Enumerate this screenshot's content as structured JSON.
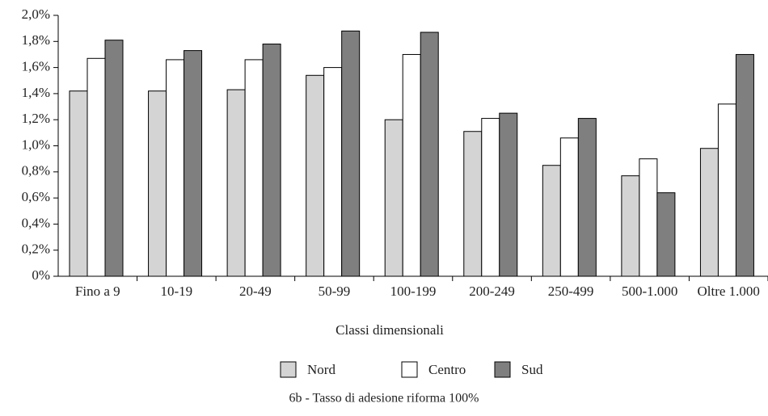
{
  "chart_data": {
    "type": "bar",
    "x_label": "Classi dimensionali",
    "caption": "6b - Tasso di adesione riforma 100%",
    "categories": [
      "Fino a 9",
      "10-19",
      "20-49",
      "50-99",
      "100-199",
      "200-249",
      "250-499",
      "500-1.000",
      "Oltre 1.000"
    ],
    "series": [
      {
        "name": "Nord",
        "color": "#d4d4d4",
        "values": [
          1.42,
          1.42,
          1.43,
          1.54,
          1.2,
          1.11,
          0.85,
          0.77,
          0.98
        ]
      },
      {
        "name": "Centro",
        "color": "#ffffff",
        "values": [
          1.67,
          1.66,
          1.66,
          1.6,
          1.7,
          1.21,
          1.06,
          0.9,
          1.32
        ]
      },
      {
        "name": "Sud",
        "color": "#7f7f80",
        "values": [
          1.81,
          1.73,
          1.78,
          1.88,
          1.87,
          1.25,
          1.21,
          0.64,
          1.7
        ]
      }
    ],
    "ylim": [
      0,
      2.0
    ],
    "yticks": [
      {
        "value": 0,
        "label": "0%"
      },
      {
        "value": 0.2,
        "label": "0,2%"
      },
      {
        "value": 0.4,
        "label": "0,4%"
      },
      {
        "value": 0.6,
        "label": "0,6%"
      },
      {
        "value": 0.8,
        "label": "0,8%"
      },
      {
        "value": 1.0,
        "label": "1,0%"
      },
      {
        "value": 1.2,
        "label": "1,2%"
      },
      {
        "value": 1.4,
        "label": "1,4%"
      },
      {
        "value": 1.6,
        "label": "1,6%"
      },
      {
        "value": 1.8,
        "label": "1,8%"
      },
      {
        "value": 2.0,
        "label": "2,0%"
      }
    ],
    "legend": "bottom"
  }
}
